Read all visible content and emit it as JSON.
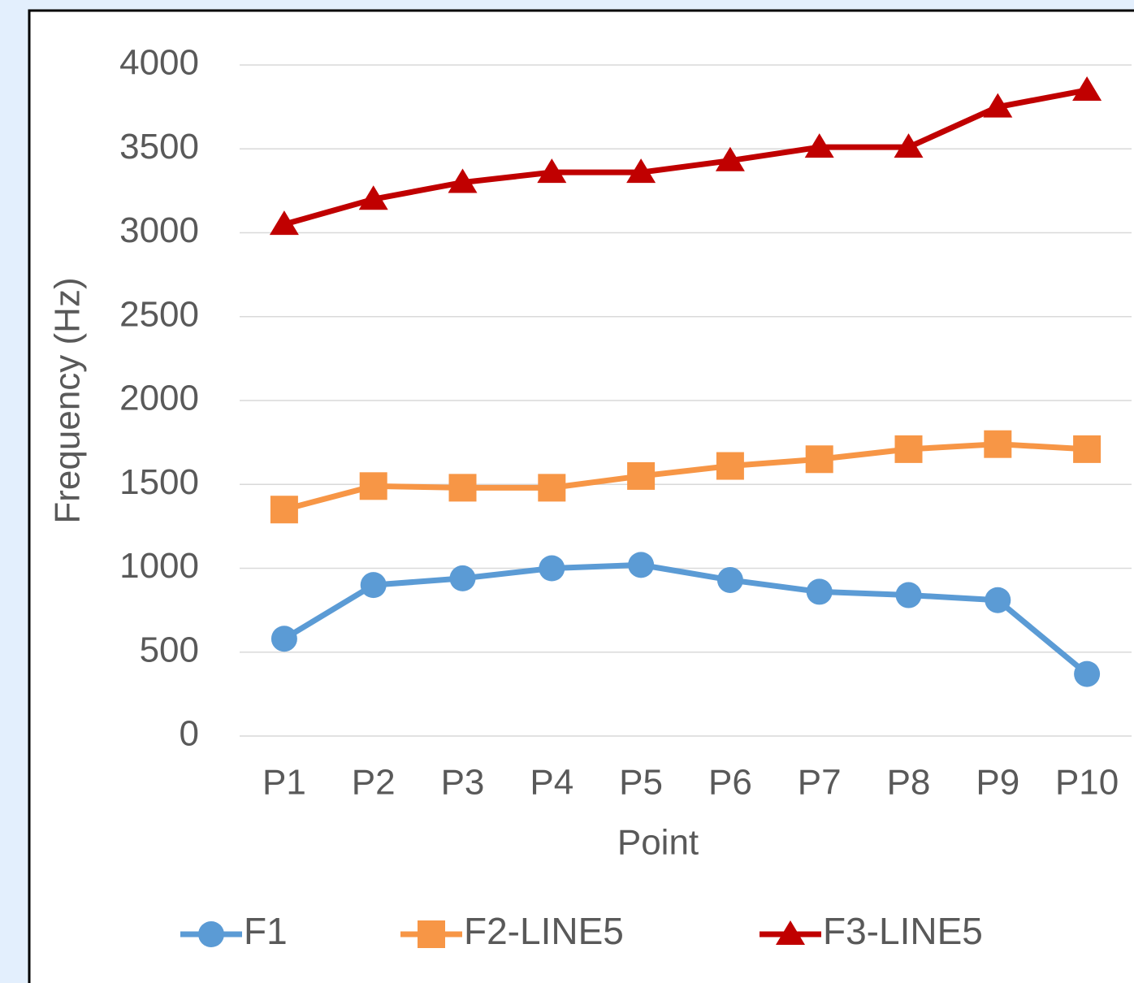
{
  "chart_data": {
    "type": "line",
    "categories": [
      "P1",
      "P2",
      "P3",
      "P4",
      "P5",
      "P6",
      "P7",
      "P8",
      "P9",
      "P10"
    ],
    "series": [
      {
        "name": "F1",
        "color": "#5b9bd5",
        "marker": "circle",
        "values": [
          580,
          900,
          940,
          1000,
          1020,
          930,
          860,
          840,
          810,
          370
        ]
      },
      {
        "name": "F2-LINE5",
        "color": "#f79646",
        "marker": "square",
        "values": [
          1350,
          1490,
          1480,
          1480,
          1550,
          1610,
          1650,
          1710,
          1740,
          1710
        ]
      },
      {
        "name": "F3-LINE5",
        "color": "#c00000",
        "marker": "triangle",
        "values": [
          3050,
          3200,
          3300,
          3360,
          3360,
          3430,
          3510,
          3510,
          3750,
          3850
        ]
      }
    ],
    "x_label": "Point",
    "y_label": "Frequency (Hz)",
    "ylim": [
      0,
      4000
    ],
    "yticks": [
      0,
      500,
      1000,
      1500,
      2000,
      2500,
      3000,
      3500,
      4000
    ],
    "grid": true,
    "legend": "bottom"
  }
}
